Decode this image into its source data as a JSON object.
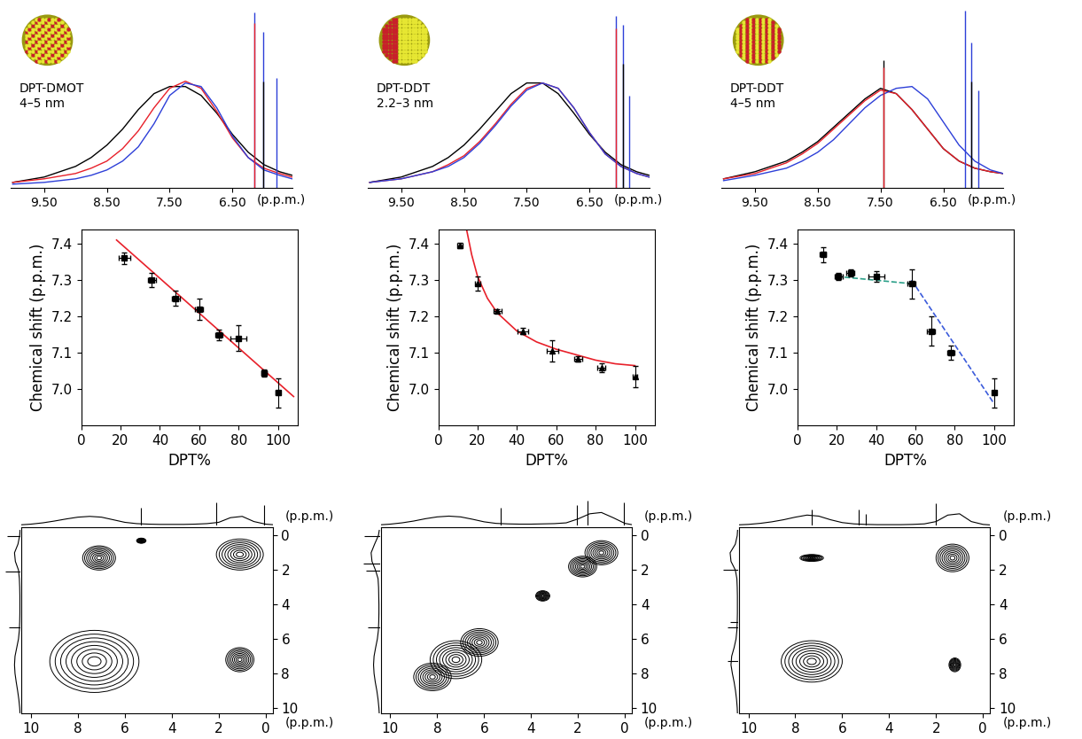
{
  "chart_data": [
    {
      "type": "line",
      "labels": [
        "DPT-DMOT",
        "4–5 nm"
      ],
      "tick_labels": "x",
      "xlabel": "(p.p.m.)",
      "x": [
        10.0,
        9.5,
        9.0,
        8.75,
        8.5,
        8.25,
        8.0,
        7.75,
        7.5,
        7.25,
        7.0,
        6.75,
        6.5,
        6.25,
        6.0,
        5.75,
        5.55
      ],
      "series": [
        {
          "color": "#000000",
          "values": [
            0.03,
            0.06,
            0.12,
            0.17,
            0.24,
            0.33,
            0.44,
            0.53,
            0.57,
            0.57,
            0.52,
            0.42,
            0.3,
            0.2,
            0.13,
            0.09,
            0.07
          ]
        },
        {
          "color": "#e8202a",
          "values": [
            0.03,
            0.05,
            0.08,
            0.11,
            0.15,
            0.22,
            0.32,
            0.45,
            0.56,
            0.6,
            0.56,
            0.43,
            0.28,
            0.17,
            0.11,
            0.08,
            0.06
          ]
        },
        {
          "color": "#2d3fd8",
          "values": [
            0.02,
            0.03,
            0.05,
            0.07,
            0.1,
            0.15,
            0.23,
            0.36,
            0.52,
            0.59,
            0.57,
            0.45,
            0.29,
            0.17,
            0.1,
            0.07,
            0.05
          ]
        }
      ],
      "sharp_peaks": [
        {
          "x": 6.15,
          "height": 0.99,
          "color": "#2d3fd8"
        },
        {
          "x": 6.15,
          "height": 0.93,
          "color": "#e8202a"
        },
        {
          "x": 6.01,
          "height": 0.88,
          "color": "#2d3fd8"
        },
        {
          "x": 6.01,
          "height": 0.6,
          "color": "#000000"
        },
        {
          "x": 5.8,
          "height": 0.62,
          "color": "#2d3fd8"
        }
      ],
      "xlim": [
        10.03,
        5.55
      ],
      "ylim": [
        0,
        1.02
      ],
      "xticks": [
        {
          "value": 9.5,
          "label": "9.50"
        },
        {
          "value": 8.5,
          "label": "8.50"
        },
        {
          "value": 7.5,
          "label": "7.50"
        },
        {
          "value": 6.5,
          "label": "6.50"
        }
      ]
    },
    {
      "type": "line",
      "labels": [
        "DPT-DDT",
        "2.2–3 nm"
      ],
      "tick_labels": "x",
      "xlabel": "(p.p.m.)",
      "x": [
        10.0,
        9.5,
        9.0,
        8.75,
        8.5,
        8.25,
        8.0,
        7.75,
        7.5,
        7.25,
        7.0,
        6.75,
        6.5,
        6.25,
        6.0,
        5.75,
        5.55
      ],
      "series": [
        {
          "color": "#000000",
          "values": [
            0.03,
            0.06,
            0.12,
            0.17,
            0.24,
            0.33,
            0.43,
            0.53,
            0.59,
            0.59,
            0.53,
            0.42,
            0.3,
            0.2,
            0.13,
            0.09,
            0.07
          ]
        },
        {
          "color": "#e8202a",
          "values": [
            0.03,
            0.05,
            0.09,
            0.13,
            0.18,
            0.26,
            0.36,
            0.47,
            0.56,
            0.59,
            0.56,
            0.45,
            0.31,
            0.19,
            0.12,
            0.08,
            0.06
          ]
        },
        {
          "color": "#2d3fd8",
          "values": [
            0.03,
            0.05,
            0.09,
            0.12,
            0.17,
            0.25,
            0.35,
            0.46,
            0.55,
            0.59,
            0.56,
            0.45,
            0.31,
            0.19,
            0.12,
            0.08,
            0.06
          ]
        }
      ],
      "sharp_peaks": [
        {
          "x": 6.08,
          "height": 0.97,
          "color": "#2d3fd8"
        },
        {
          "x": 6.08,
          "height": 0.9,
          "color": "#e8202a"
        },
        {
          "x": 5.97,
          "height": 0.92,
          "color": "#2d3fd8"
        },
        {
          "x": 5.97,
          "height": 0.7,
          "color": "#000000"
        },
        {
          "x": 5.87,
          "height": 0.52,
          "color": "#2d3fd8"
        }
      ],
      "xlim": [
        10.03,
        5.55
      ],
      "ylim": [
        0,
        1.02
      ],
      "xticks": [
        {
          "value": 9.5,
          "label": "9.50"
        },
        {
          "value": 8.5,
          "label": "8.50"
        },
        {
          "value": 7.5,
          "label": "7.50"
        },
        {
          "value": 6.5,
          "label": "6.50"
        }
      ]
    },
    {
      "type": "line",
      "labels": [
        "DPT-DDT",
        "4–5 nm"
      ],
      "tick_labels": "x",
      "xlabel": "(p.p.m.)",
      "x": [
        10.0,
        9.5,
        9.0,
        8.75,
        8.5,
        8.25,
        8.0,
        7.75,
        7.5,
        7.25,
        7.0,
        6.75,
        6.5,
        6.25,
        6.0,
        5.75,
        5.55
      ],
      "series": [
        {
          "color": "#000000",
          "values": [
            0.05,
            0.09,
            0.15,
            0.2,
            0.26,
            0.34,
            0.42,
            0.5,
            0.56,
            0.53,
            0.44,
            0.33,
            0.22,
            0.15,
            0.11,
            0.09,
            0.08
          ]
        },
        {
          "color": "#e8202a",
          "values": [
            0.05,
            0.08,
            0.14,
            0.19,
            0.25,
            0.33,
            0.41,
            0.49,
            0.55,
            0.53,
            0.44,
            0.33,
            0.22,
            0.15,
            0.11,
            0.09,
            0.08
          ]
        },
        {
          "color": "#2d3fd8",
          "values": [
            0.04,
            0.07,
            0.11,
            0.15,
            0.2,
            0.27,
            0.36,
            0.45,
            0.52,
            0.56,
            0.57,
            0.5,
            0.37,
            0.24,
            0.15,
            0.1,
            0.08
          ]
        }
      ],
      "sharp_peaks": [
        {
          "x": 7.45,
          "height": 0.72,
          "color": "#000000"
        },
        {
          "x": 7.45,
          "height": 0.68,
          "color": "#e8202a"
        },
        {
          "x": 6.15,
          "height": 1.0,
          "color": "#2d3fd8"
        },
        {
          "x": 6.05,
          "height": 0.82,
          "color": "#2d3fd8"
        },
        {
          "x": 6.05,
          "height": 0.6,
          "color": "#000000"
        },
        {
          "x": 5.94,
          "height": 0.55,
          "color": "#2d3fd8"
        }
      ],
      "xlim": [
        10.03,
        5.55
      ],
      "ylim": [
        0,
        1.02
      ],
      "xticks": [
        {
          "value": 9.5,
          "label": "9.50"
        },
        {
          "value": 8.5,
          "label": "8.50"
        },
        {
          "value": 7.5,
          "label": "7.50"
        },
        {
          "value": 6.5,
          "label": "6.50"
        }
      ]
    },
    {
      "type": "scatter",
      "xlabel": "DPT%",
      "ylabel": "Chemical shift (p.p.m.)",
      "color": "#000000",
      "marker": "square",
      "x": [
        22,
        36,
        48,
        60,
        70,
        80,
        93,
        100
      ],
      "values": [
        7.36,
        7.3,
        7.25,
        7.22,
        7.15,
        7.14,
        7.045,
        6.99
      ],
      "x_error": [
        3,
        2,
        2,
        2,
        2,
        4,
        1.5,
        1
      ],
      "y_error": [
        0.015,
        0.02,
        0.02,
        0.03,
        0.015,
        0.035,
        0.01,
        0.04
      ],
      "fits": [
        {
          "x": [
            18,
            108
          ],
          "values": [
            7.41,
            6.98
          ],
          "color": "#e8202a",
          "line_style": "solid"
        }
      ],
      "xlim": [
        0,
        110
      ],
      "ylim": [
        6.9,
        7.44
      ],
      "xticks": [
        0,
        20,
        40,
        60,
        80,
        100
      ],
      "yticks": [
        7.0,
        7.1,
        7.2,
        7.3,
        7.4
      ]
    },
    {
      "type": "scatter",
      "xlabel": "DPT%",
      "ylabel": "Chemical shift (p.p.m.)",
      "color": "#000000",
      "marker": "triangle",
      "x": [
        11,
        20,
        30,
        43,
        58,
        71,
        83,
        100
      ],
      "values": [
        7.395,
        7.29,
        7.215,
        7.16,
        7.105,
        7.083,
        7.06,
        7.035
      ],
      "x_error": [
        1.5,
        1.5,
        2,
        2.5,
        3,
        2,
        2,
        1
      ],
      "y_error": [
        0.008,
        0.02,
        0.005,
        0.008,
        0.03,
        0.008,
        0.012,
        0.03
      ],
      "fits": [
        {
          "x": [
            14,
            17,
            20,
            25,
            30,
            40,
            50,
            60,
            70,
            80,
            90,
            100
          ],
          "values": [
            7.45,
            7.37,
            7.31,
            7.25,
            7.21,
            7.16,
            7.13,
            7.11,
            7.095,
            7.08,
            7.07,
            7.065
          ],
          "color": "#e8202a",
          "line_style": "solid"
        }
      ],
      "xlim": [
        0,
        110
      ],
      "ylim": [
        6.9,
        7.44
      ],
      "xticks": [
        0,
        20,
        40,
        60,
        80,
        100
      ],
      "yticks": [
        7.0,
        7.1,
        7.2,
        7.3,
        7.4
      ]
    },
    {
      "type": "scatter",
      "xlabel": "DPT%",
      "ylabel": "Chemical shift (p.p.m.)",
      "color": "#000000",
      "marker": "square",
      "x": [
        13,
        21,
        27,
        40,
        58,
        68,
        78,
        100
      ],
      "values": [
        7.37,
        7.31,
        7.32,
        7.31,
        7.29,
        7.16,
        7.1,
        6.99
      ],
      "x_error": [
        1.5,
        2,
        2,
        4,
        2,
        2,
        2,
        1
      ],
      "y_error": [
        0.02,
        0.01,
        0.01,
        0.015,
        0.04,
        0.04,
        0.02,
        0.04
      ],
      "fits": [
        {
          "x": [
            20,
            58
          ],
          "values": [
            7.31,
            7.29
          ],
          "color": "#2ca089",
          "line_style": "dashed"
        },
        {
          "x": [
            58,
            100
          ],
          "values": [
            7.3,
            6.96
          ],
          "color": "#3b5bdb",
          "line_style": "dashed"
        }
      ],
      "xlim": [
        0,
        110
      ],
      "ylim": [
        6.9,
        7.44
      ],
      "xticks": [
        0,
        20,
        40,
        60,
        80,
        100
      ],
      "yticks": [
        7.0,
        7.1,
        7.2,
        7.3,
        7.4
      ]
    },
    {
      "type": "contour",
      "xlabel": "(p.p.m.)",
      "ylabel": "(p.p.m.)",
      "color": "#000000",
      "peaks": [
        {
          "x": 7.3,
          "y": 7.3,
          "width": 3.8,
          "height": 3.6
        },
        {
          "x": 1.1,
          "y": 1.1,
          "width": 2.0,
          "height": 1.8
        },
        {
          "x": 7.1,
          "y": 1.3,
          "width": 1.4,
          "height": 1.4
        },
        {
          "x": 1.1,
          "y": 7.2,
          "width": 1.2,
          "height": 1.4
        },
        {
          "x": 5.3,
          "y": 0.3,
          "width": 0.4,
          "height": 0.3
        }
      ],
      "projection": {
        "x": [
          10.5,
          10,
          9.5,
          9,
          8.5,
          8,
          7.5,
          7,
          6.5,
          6,
          5.5,
          5,
          4.5,
          4,
          3.5,
          3,
          2.5,
          2,
          1.5,
          1,
          0.5,
          0,
          -0.3
        ],
        "values": [
          0.02,
          0.05,
          0.1,
          0.17,
          0.25,
          0.32,
          0.35,
          0.32,
          0.22,
          0.12,
          0.07,
          0.05,
          0.04,
          0.04,
          0.04,
          0.05,
          0.07,
          0.12,
          0.3,
          0.35,
          0.15,
          0.05,
          0.03
        ],
        "sharp_peaks": [
          {
            "x": 5.3,
            "height": 0.7
          },
          {
            "x": 2.1,
            "height": 0.9
          },
          {
            "x": 0.05,
            "height": 0.8
          }
        ],
        "ylim": [
          0,
          1
        ]
      },
      "xlim": [
        10.4,
        -0.3
      ],
      "ylim": [
        10.3,
        -0.5
      ],
      "xticks": [
        10,
        8,
        6,
        4,
        2,
        0
      ],
      "yticks": [
        0,
        2,
        4,
        6,
        8,
        10
      ]
    },
    {
      "type": "contour",
      "xlabel": "(p.p.m.)",
      "ylabel": "(p.p.m.)",
      "color": "#000000",
      "peaks": [
        {
          "x": 8.2,
          "y": 8.2,
          "width": 1.6,
          "height": 1.6
        },
        {
          "x": 7.2,
          "y": 7.2,
          "width": 2.2,
          "height": 2.2
        },
        {
          "x": 6.2,
          "y": 6.2,
          "width": 1.6,
          "height": 1.6
        },
        {
          "x": 1.8,
          "y": 1.8,
          "width": 1.2,
          "height": 1.2
        },
        {
          "x": 1.0,
          "y": 1.0,
          "width": 1.4,
          "height": 1.4
        },
        {
          "x": 3.5,
          "y": 3.5,
          "width": 0.6,
          "height": 0.6
        }
      ],
      "projection": {
        "x": [
          10.5,
          10,
          9.5,
          9,
          8.5,
          8,
          7.5,
          7,
          6.5,
          6,
          5.5,
          5,
          4.5,
          4,
          3.5,
          3,
          2.5,
          2,
          1.5,
          1,
          0.5,
          0,
          -0.3
        ],
        "values": [
          0.02,
          0.05,
          0.1,
          0.17,
          0.26,
          0.33,
          0.36,
          0.33,
          0.24,
          0.14,
          0.08,
          0.06,
          0.05,
          0.05,
          0.06,
          0.07,
          0.1,
          0.25,
          0.45,
          0.5,
          0.3,
          0.08,
          0.03
        ],
        "sharp_peaks": [
          {
            "x": 5.3,
            "height": 0.7
          },
          {
            "x": 2.05,
            "height": 0.8
          },
          {
            "x": 1.6,
            "height": 0.95
          },
          {
            "x": 0.05,
            "height": 0.9
          }
        ],
        "ylim": [
          0,
          1
        ]
      },
      "xlim": [
        10.4,
        -0.3
      ],
      "ylim": [
        10.3,
        -0.5
      ],
      "xticks": [
        10,
        8,
        6,
        4,
        2,
        0
      ],
      "yticks": [
        0,
        2,
        4,
        6,
        8,
        10
      ]
    },
    {
      "type": "contour",
      "xlabel": "(p.p.m.)",
      "ylabel": "(p.p.m.)",
      "color": "#000000",
      "peaks": [
        {
          "x": 7.3,
          "y": 7.3,
          "width": 2.6,
          "height": 2.4
        },
        {
          "x": 1.3,
          "y": 1.3,
          "width": 1.4,
          "height": 1.6
        },
        {
          "x": 7.3,
          "y": 1.3,
          "width": 1.0,
          "height": 0.4
        },
        {
          "x": 1.2,
          "y": 7.5,
          "width": 0.5,
          "height": 0.8
        }
      ],
      "projection": {
        "x": [
          10.5,
          10,
          9.5,
          9,
          8.5,
          8,
          7.5,
          7,
          6.5,
          6,
          5.5,
          5,
          4.5,
          4,
          3.5,
          3,
          2.5,
          2,
          1.5,
          1,
          0.5,
          0,
          -0.3
        ],
        "values": [
          0.02,
          0.04,
          0.08,
          0.14,
          0.22,
          0.32,
          0.4,
          0.36,
          0.22,
          0.11,
          0.06,
          0.04,
          0.03,
          0.03,
          0.03,
          0.04,
          0.06,
          0.15,
          0.4,
          0.45,
          0.15,
          0.04,
          0.02
        ],
        "sharp_peaks": [
          {
            "x": 7.3,
            "height": 0.6
          },
          {
            "x": 5.3,
            "height": 0.6
          },
          {
            "x": 5.0,
            "height": 0.45
          },
          {
            "x": 2.0,
            "height": 0.85
          }
        ],
        "ylim": [
          0,
          1
        ]
      },
      "xlim": [
        10.4,
        -0.3
      ],
      "ylim": [
        10.3,
        -0.5
      ],
      "xticks": [
        10,
        8,
        6,
        4,
        2,
        0
      ],
      "yticks": [
        0,
        2,
        4,
        6,
        8,
        10
      ]
    }
  ]
}
